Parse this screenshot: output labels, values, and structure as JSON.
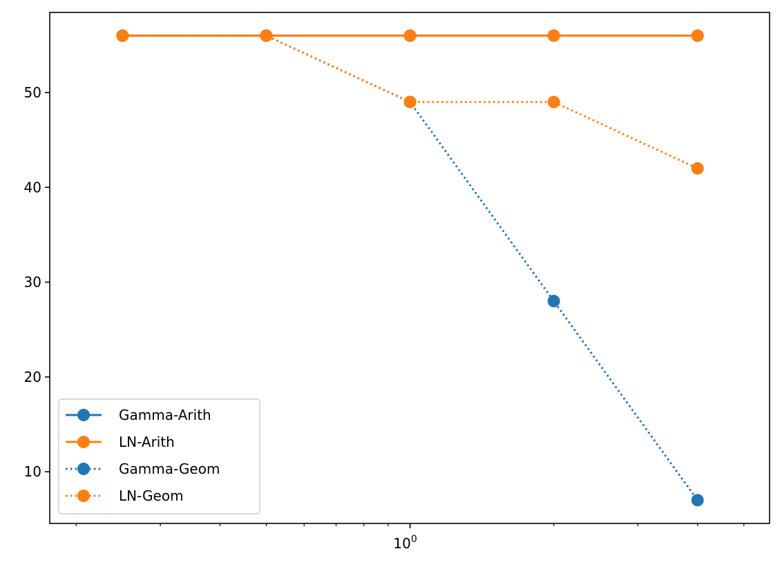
{
  "chart_data": {
    "type": "line",
    "title": "",
    "xlabel": "",
    "ylabel": "",
    "xscale": "log",
    "x": [
      0.25,
      0.5,
      1,
      2,
      4
    ],
    "xlim": [
      0.176,
      5.66
    ],
    "ylim": [
      4.55,
      58.45
    ],
    "x_major_ticks": [
      {
        "value": 1,
        "base": "10",
        "exp": "0"
      }
    ],
    "x_minor_ticks": [
      0.2,
      0.3,
      0.4,
      0.5,
      0.6,
      0.7,
      0.8,
      0.9,
      2,
      3,
      4,
      5
    ],
    "y_ticks": [
      10,
      20,
      30,
      40,
      50
    ],
    "grid": false,
    "legend": {
      "placement": "lower-left"
    },
    "series": [
      {
        "name": "Gamma-Arith",
        "values": [
          56,
          56,
          56,
          56,
          56
        ],
        "color": "#1f77b4",
        "linestyle": "solid",
        "marker": "circle"
      },
      {
        "name": "LN-Arith",
        "values": [
          56,
          56,
          56,
          56,
          56
        ],
        "color": "#ff7f0e",
        "linestyle": "solid",
        "marker": "circle"
      },
      {
        "name": "Gamma-Geom",
        "values": [
          56,
          56,
          49,
          28,
          7
        ],
        "color": "#1f77b4",
        "linestyle": "dotted",
        "marker": "circle"
      },
      {
        "name": "LN-Geom",
        "values": [
          56,
          56,
          49,
          49,
          42
        ],
        "color": "#ff7f0e",
        "linestyle": "dotted",
        "marker": "circle"
      }
    ]
  }
}
